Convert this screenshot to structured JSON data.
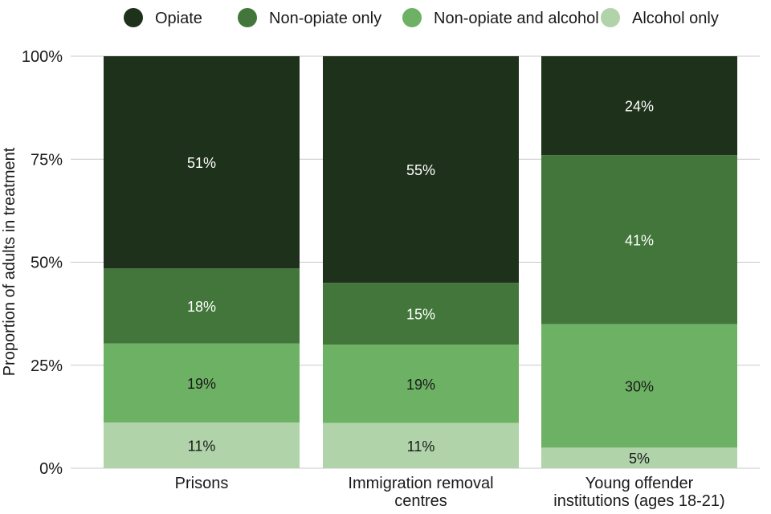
{
  "chart_data": {
    "type": "bar",
    "stacked": true,
    "categories": [
      [
        "Prisons"
      ],
      [
        "Immigration removal",
        "centres"
      ],
      [
        "Young offender",
        "institutions (ages 18-21)"
      ]
    ],
    "series": [
      {
        "name": "Alcohol only",
        "color": "#b0d3aa",
        "values": [
          11,
          11,
          5
        ],
        "labels": [
          "11%",
          "11%",
          "5%"
        ]
      },
      {
        "name": "Non-opiate and alcohol",
        "color": "#6db164",
        "values": [
          19,
          19,
          30
        ],
        "labels": [
          "19%",
          "19%",
          "30%"
        ]
      },
      {
        "name": "Non-opiate only",
        "color": "#42763a",
        "values": [
          18,
          15,
          41
        ],
        "labels": [
          "18%",
          "15%",
          "41%"
        ]
      },
      {
        "name": "Opiate",
        "color": "#1e311a",
        "values": [
          51,
          55,
          24
        ],
        "labels": [
          "51%",
          "55%",
          "24%"
        ]
      }
    ],
    "legend_order": [
      "Opiate",
      "Non-opiate only",
      "Non-opiate and alcohol",
      "Alcohol only"
    ],
    "legend_position": "top",
    "ylabel": "Proportion of adults in treatment",
    "xlabel": "",
    "ylim": [
      0,
      100
    ],
    "yticks": [
      0,
      25,
      50,
      75,
      100
    ],
    "ytick_labels": [
      "0%",
      "25%",
      "50%",
      "75%",
      "100%"
    ],
    "grid": "horizontal"
  }
}
